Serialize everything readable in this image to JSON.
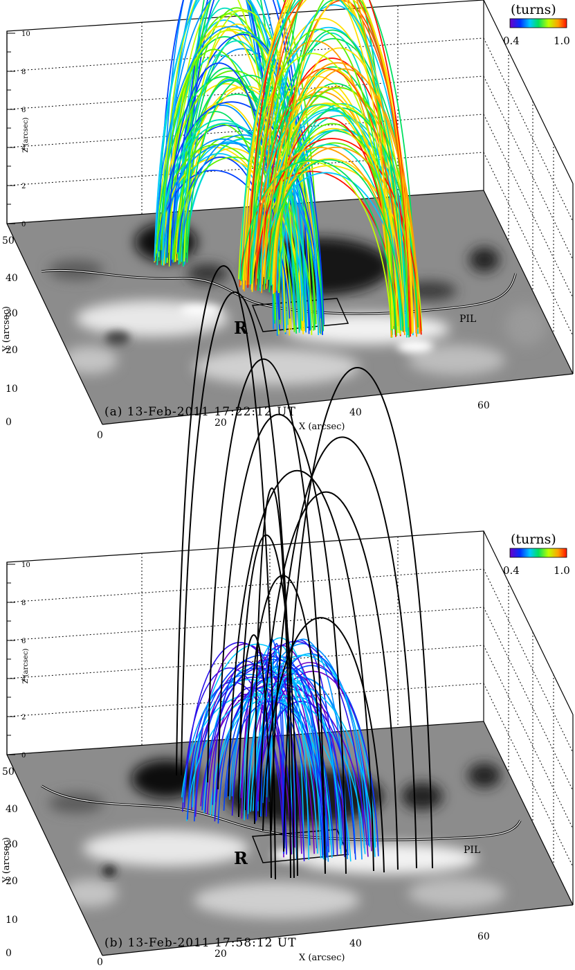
{
  "colorbar": {
    "title": "(turns)",
    "min_label": "0.4",
    "max_label": "1.0"
  },
  "axes": {
    "x_title": "X (arcsec)",
    "y_title": "Y (arcsec)",
    "z_title": "Z (arcsec)",
    "x_ticks": [
      "0",
      "20",
      "40",
      "60"
    ],
    "y_ticks": [
      "0",
      "10",
      "20",
      "30",
      "40",
      "50"
    ],
    "z_ticks": [
      "0",
      "2",
      "4",
      "6",
      "8",
      "10"
    ]
  },
  "panels": [
    {
      "id": "a",
      "timestamp": "(a) 13-Feb-2011 17:22:12 UT",
      "region_label": "R",
      "pil_label": "PIL"
    },
    {
      "id": "b",
      "timestamp": "(b) 13-Feb-2011 17:58:12 UT",
      "region_label": "R",
      "pil_label": "PIL"
    }
  ]
}
